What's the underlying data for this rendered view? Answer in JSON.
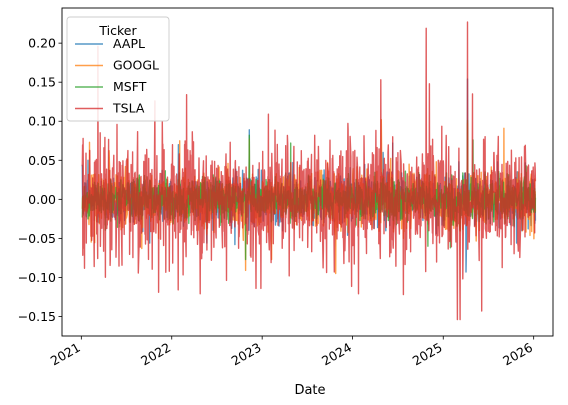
{
  "chart_data": {
    "type": "line",
    "title": "",
    "xlabel": "Date",
    "ylabel": "",
    "x_ticks": [
      "2021",
      "2022",
      "2023",
      "2024",
      "2025",
      "2026"
    ],
    "y_ticks": [
      "−0.15",
      "−0.10",
      "−0.05",
      "0.00",
      "0.05",
      "0.10",
      "0.15",
      "0.20"
    ],
    "ylim": [
      -0.175,
      0.245
    ],
    "xlim": [
      "2020-10-15",
      "2026-03-20"
    ],
    "x_range": [
      "2021-01-05",
      "2026-01-08"
    ],
    "grid": false,
    "legend": {
      "title": "Ticker",
      "position": "top-left"
    },
    "series": [
      {
        "name": "AAPL",
        "color": "#1f77b4",
        "opacity": 0.75,
        "amplitude": 0.016,
        "peaks": [
          {
            "date": "2021-01-28",
            "value": 0.05
          },
          {
            "date": "2022-01-28",
            "value": 0.07
          },
          {
            "date": "2022-11-10",
            "value": 0.089
          },
          {
            "date": "2023-05-05",
            "value": 0.047
          },
          {
            "date": "2024-05-03",
            "value": 0.06
          },
          {
            "date": "2024-06-11",
            "value": 0.072
          },
          {
            "date": "2025-04-09",
            "value": 0.154
          },
          {
            "date": "2025-04-03",
            "value": -0.093
          },
          {
            "date": "2025-04-04",
            "value": -0.073
          },
          {
            "date": "2022-09-13",
            "value": -0.058
          }
        ]
      },
      {
        "name": "GOOGL",
        "color": "#ff7f0e",
        "opacity": 0.75,
        "amplitude": 0.018,
        "peaks": [
          {
            "date": "2021-02-03",
            "value": 0.073
          },
          {
            "date": "2022-02-02",
            "value": 0.075
          },
          {
            "date": "2022-10-26",
            "value": -0.091
          },
          {
            "date": "2023-02-08",
            "value": -0.077
          },
          {
            "date": "2023-10-25",
            "value": -0.095
          },
          {
            "date": "2024-04-26",
            "value": 0.102
          },
          {
            "date": "2024-07-24",
            "value": -0.05
          },
          {
            "date": "2025-04-09",
            "value": 0.097
          },
          {
            "date": "2025-09-03",
            "value": 0.091
          },
          {
            "date": "2022-11-10",
            "value": 0.077
          }
        ]
      },
      {
        "name": "MSFT",
        "color": "#2ca02c",
        "opacity": 0.75,
        "amplitude": 0.014,
        "peaks": [
          {
            "date": "2022-11-10",
            "value": 0.082
          },
          {
            "date": "2023-04-26",
            "value": 0.072
          },
          {
            "date": "2022-10-26",
            "value": -0.077
          },
          {
            "date": "2024-01-31",
            "value": -0.027
          },
          {
            "date": "2025-04-09",
            "value": 0.101
          },
          {
            "date": "2025-05-01",
            "value": 0.076
          },
          {
            "date": "2025-01-30",
            "value": -0.062
          },
          {
            "date": "2024-10-31",
            "value": -0.06
          }
        ]
      },
      {
        "name": "TSLA",
        "color": "#d62728",
        "opacity": 0.75,
        "amplitude": 0.037,
        "peaks": [
          {
            "date": "2021-01-08",
            "value": 0.078
          },
          {
            "date": "2021-03-09",
            "value": 0.196
          },
          {
            "date": "2021-02-22",
            "value": -0.086
          },
          {
            "date": "2021-10-25",
            "value": 0.126
          },
          {
            "date": "2021-11-09",
            "value": -0.119
          },
          {
            "date": "2022-01-27",
            "value": -0.116
          },
          {
            "date": "2022-03-02",
            "value": 0.134
          },
          {
            "date": "2022-04-26",
            "value": -0.121
          },
          {
            "date": "2022-12-27",
            "value": -0.114
          },
          {
            "date": "2023-01-26",
            "value": 0.109
          },
          {
            "date": "2023-04-20",
            "value": -0.098
          },
          {
            "date": "2023-10-19",
            "value": -0.093
          },
          {
            "date": "2024-01-25",
            "value": -0.121
          },
          {
            "date": "2024-04-24",
            "value": 0.153
          },
          {
            "date": "2024-07-24",
            "value": -0.122
          },
          {
            "date": "2024-10-24",
            "value": 0.219
          },
          {
            "date": "2024-11-06",
            "value": 0.148
          },
          {
            "date": "2025-02-27",
            "value": -0.154
          },
          {
            "date": "2025-03-10",
            "value": -0.154
          },
          {
            "date": "2025-04-09",
            "value": 0.227
          },
          {
            "date": "2025-06-05",
            "value": -0.143
          },
          {
            "date": "2025-04-29",
            "value": 0.135
          }
        ]
      }
    ]
  }
}
